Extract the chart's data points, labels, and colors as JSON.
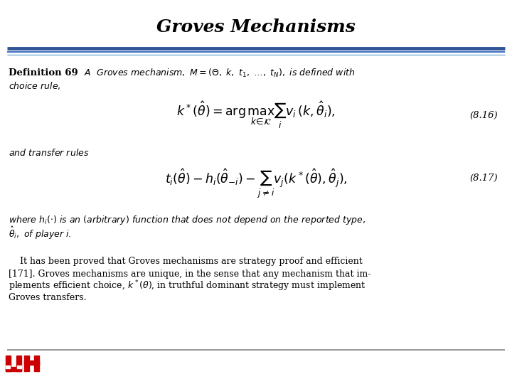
{
  "title": "Groves Mechanisms",
  "bg_color": "#ffffff",
  "title_color": "#000000",
  "line_color_blue1": "#4472c4",
  "line_color_blue2": "#7bafd4",
  "line_color_gray": "#888888",
  "eq_number_16": "(8.16)",
  "eq_number_17": "(8.17)",
  "uh_logo_color": "#cc0000"
}
